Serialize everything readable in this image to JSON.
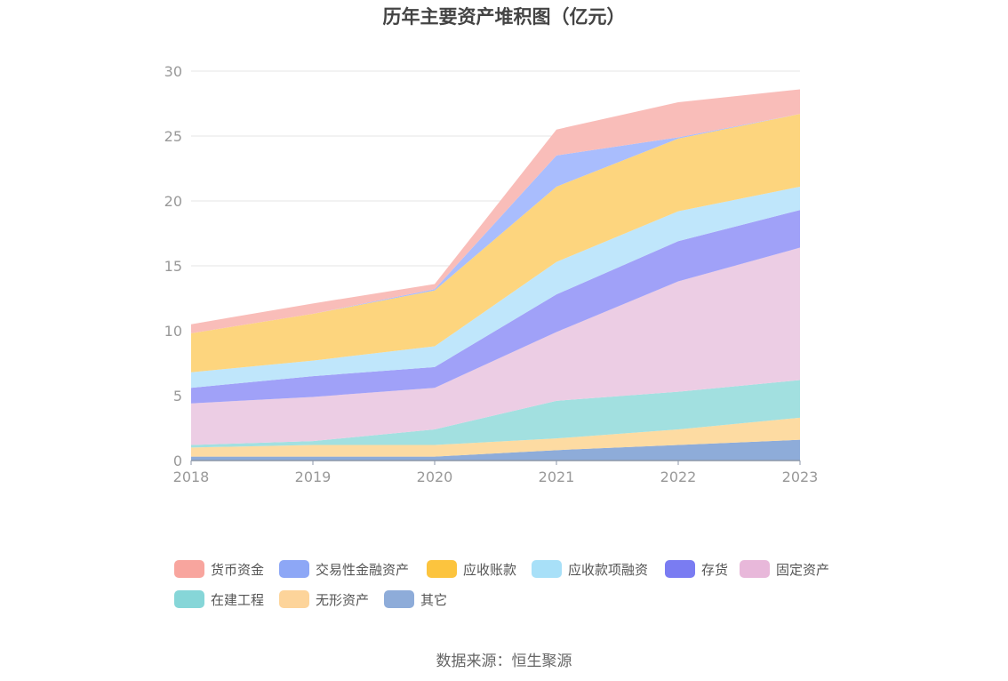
{
  "chart_data": {
    "type": "area",
    "stacked": true,
    "title": "历年主要资产堆积图（亿元）",
    "categories": [
      "2018",
      "2019",
      "2020",
      "2021",
      "2022",
      "2023"
    ],
    "y_ticks": [
      "0",
      "5",
      "10",
      "15",
      "20",
      "25",
      "30"
    ],
    "ylim": [
      0,
      30
    ],
    "grid": true,
    "legend_position": "bottom",
    "series": [
      {
        "name": "其它",
        "color": "#8eacd9",
        "values": [
          0.3,
          0.3,
          0.3,
          0.8,
          1.2,
          1.6
        ]
      },
      {
        "name": "无形资产",
        "color": "#fddba2",
        "values": [
          0.7,
          0.9,
          0.9,
          0.9,
          1.2,
          1.7
        ]
      },
      {
        "name": "在建工程",
        "color": "#a2e0e0",
        "values": [
          0.2,
          0.3,
          1.2,
          2.9,
          2.9,
          2.9
        ]
      },
      {
        "name": "固定资产",
        "color": "#eccde4",
        "values": [
          3.2,
          3.4,
          3.2,
          5.3,
          8.5,
          10.2
        ]
      },
      {
        "name": "存货",
        "color": "#a0a1f8",
        "values": [
          1.2,
          1.6,
          1.6,
          2.9,
          3.1,
          2.9
        ]
      },
      {
        "name": "应收款项融资",
        "color": "#bfe6fb",
        "values": [
          1.2,
          1.2,
          1.6,
          2.5,
          2.3,
          1.8
        ]
      },
      {
        "name": "应收账款",
        "color": "#fdd57e",
        "values": [
          3.0,
          3.6,
          4.3,
          5.8,
          5.6,
          5.6
        ]
      },
      {
        "name": "交易性金融资产",
        "color": "#a9bdfd",
        "values": [
          0,
          0,
          0.1,
          2.4,
          0.1,
          0
        ]
      },
      {
        "name": "货币资金",
        "color": "#f9bdb9",
        "values": [
          0.7,
          0.8,
          0.4,
          2.0,
          2.7,
          1.9
        ]
      }
    ],
    "legend": [
      {
        "name": "货币资金",
        "color": "#f8a59e"
      },
      {
        "name": "交易性金融资产",
        "color": "#8da7f6"
      },
      {
        "name": "应收账款",
        "color": "#fcc43e"
      },
      {
        "name": "应收款项融资",
        "color": "#a8e0f8"
      },
      {
        "name": "存货",
        "color": "#7a7cf2"
      },
      {
        "name": "固定资产",
        "color": "#e8b8da"
      },
      {
        "name": "在建工程",
        "color": "#86d6d8"
      },
      {
        "name": "无形资产",
        "color": "#fdd49a"
      },
      {
        "name": "其它",
        "color": "#8eacd9"
      }
    ]
  },
  "source_note": "数据来源：恒生聚源"
}
